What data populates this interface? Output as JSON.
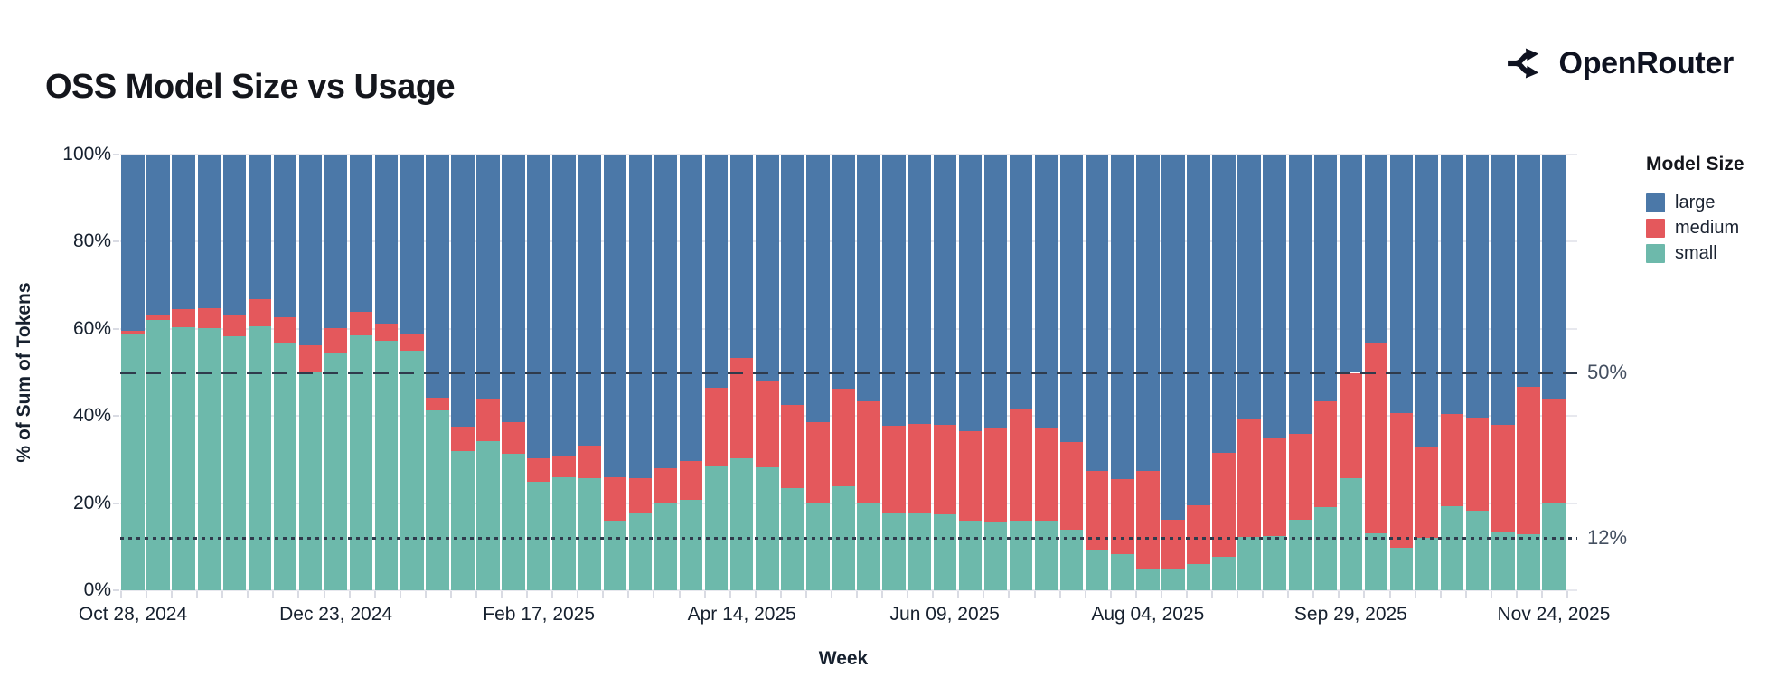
{
  "header": {
    "title": "OSS Model Size vs Usage",
    "brand": "OpenRouter"
  },
  "legend": {
    "title": "Model Size",
    "items": [
      {
        "label": "large",
        "color": "#4B78A8"
      },
      {
        "label": "medium",
        "color": "#E4585C"
      },
      {
        "label": "small",
        "color": "#6DB9AB"
      }
    ]
  },
  "colors": {
    "large": "#4B78A8",
    "medium": "#E4585C",
    "small": "#6DB9AB",
    "ref_line": "#2f3b4c",
    "grid": "#e7e8ee",
    "text": "#16202e"
  },
  "chart_data": {
    "type": "bar",
    "stacked": true,
    "title": "OSS Model Size vs Usage",
    "xlabel": "Week",
    "ylabel": "% of Sum of Tokens",
    "ylim": [
      0,
      100
    ],
    "grid": true,
    "legend_position": "right",
    "y_ticks": [
      0,
      20,
      40,
      60,
      80,
      100
    ],
    "y_tick_suffix": "%",
    "weeks": [
      "Oct 28, 2024",
      "Nov 04, 2024",
      "Nov 11, 2024",
      "Nov 18, 2024",
      "Nov 25, 2024",
      "Dec 02, 2024",
      "Dec 09, 2024",
      "Dec 16, 2024",
      "Dec 23, 2024",
      "Dec 30, 2024",
      "Jan 06, 2025",
      "Jan 13, 2025",
      "Jan 20, 2025",
      "Jan 27, 2025",
      "Feb 03, 2025",
      "Feb 10, 2025",
      "Feb 17, 2025",
      "Feb 24, 2025",
      "Mar 03, 2025",
      "Mar 10, 2025",
      "Mar 17, 2025",
      "Mar 24, 2025",
      "Mar 31, 2025",
      "Apr 07, 2025",
      "Apr 14, 2025",
      "Apr 21, 2025",
      "Apr 28, 2025",
      "May 05, 2025",
      "May 12, 2025",
      "May 19, 2025",
      "May 26, 2025",
      "Jun 02, 2025",
      "Jun 09, 2025",
      "Jun 16, 2025",
      "Jun 23, 2025",
      "Jun 30, 2025",
      "Jul 07, 2025",
      "Jul 14, 2025",
      "Jul 21, 2025",
      "Jul 28, 2025",
      "Aug 04, 2025",
      "Aug 11, 2025",
      "Aug 18, 2025",
      "Aug 25, 2025",
      "Sep 01, 2025",
      "Sep 08, 2025",
      "Sep 15, 2025",
      "Sep 22, 2025",
      "Sep 29, 2025",
      "Oct 06, 2025",
      "Oct 13, 2025",
      "Oct 20, 2025",
      "Oct 27, 2025",
      "Nov 03, 2025",
      "Nov 10, 2025",
      "Nov 17, 2025",
      "Nov 24, 2025"
    ],
    "x_tick_labels": [
      "Oct 28, 2024",
      "Dec 23, 2024",
      "Feb 17, 2025",
      "Apr 14, 2025",
      "Jun 09, 2025",
      "Aug 04, 2025",
      "Sep 29, 2025",
      "Nov 24, 2025"
    ],
    "x_tick_indices": [
      0,
      8,
      16,
      24,
      32,
      40,
      48,
      56
    ],
    "series": [
      {
        "name": "small",
        "color": "#6DB9AB",
        "values": [
          59,
          62,
          60.3,
          60.2,
          58.2,
          60.5,
          56.7,
          50,
          54.4,
          58.5,
          57.3,
          55,
          41.2,
          32,
          34.3,
          31.3,
          24.9,
          25.9,
          25.7,
          16,
          17.6,
          20,
          20.8,
          28.4,
          30.2,
          28.2,
          23.5,
          20,
          23.8,
          20,
          17.8,
          17.6,
          17.4,
          16,
          15.8,
          15.9,
          16,
          13.9,
          9.3,
          8.4,
          4.8,
          4.7,
          6,
          7.6,
          12.2,
          12.5,
          16.2,
          19,
          25.7,
          13.1,
          9.8,
          12,
          19.3,
          18.3,
          13.3,
          12.8,
          20
        ]
      },
      {
        "name": "medium",
        "color": "#E4585C",
        "values": [
          0.5,
          1,
          4.2,
          4.6,
          5,
          6.3,
          6,
          6.2,
          5.7,
          5.3,
          4,
          3.8,
          2.9,
          5.6,
          9.6,
          7.2,
          5.4,
          5.1,
          7.5,
          10,
          8.2,
          8.1,
          8.9,
          18,
          23.1,
          20,
          19,
          18.6,
          22.4,
          23.3,
          19.9,
          20.5,
          20.5,
          20.5,
          21.6,
          25.7,
          21.4,
          20.1,
          18,
          17.1,
          22.5,
          11.5,
          13.5,
          24,
          27.3,
          22.6,
          19.6,
          24.4,
          24.2,
          43.7,
          30.9,
          20.8,
          21.1,
          21.4,
          24.6,
          33.8,
          23.9
        ]
      },
      {
        "name": "large",
        "color": "#4B78A8",
        "values": [
          40.5,
          37,
          35.5,
          35.2,
          36.8,
          33.2,
          37.3,
          43.8,
          39.9,
          36.2,
          38.7,
          41.2,
          55.9,
          62.4,
          56.1,
          61.5,
          69.7,
          69,
          66.8,
          74,
          74.2,
          71.9,
          70.3,
          53.6,
          46.7,
          51.8,
          57.5,
          61.4,
          53.8,
          56.7,
          62.3,
          61.9,
          62.1,
          63.5,
          62.6,
          58.4,
          62.6,
          66,
          72.7,
          74.5,
          72.7,
          83.8,
          80.5,
          68.4,
          60.5,
          64.9,
          64.2,
          56.6,
          50.1,
          43.2,
          59.3,
          67.2,
          59.6,
          60.3,
          62.1,
          53.4,
          56.1
        ]
      }
    ],
    "ref_lines": [
      {
        "value": 50,
        "label": "50%",
        "style": "dashed"
      },
      {
        "value": 12,
        "label": "12%",
        "style": "dotted"
      }
    ]
  }
}
